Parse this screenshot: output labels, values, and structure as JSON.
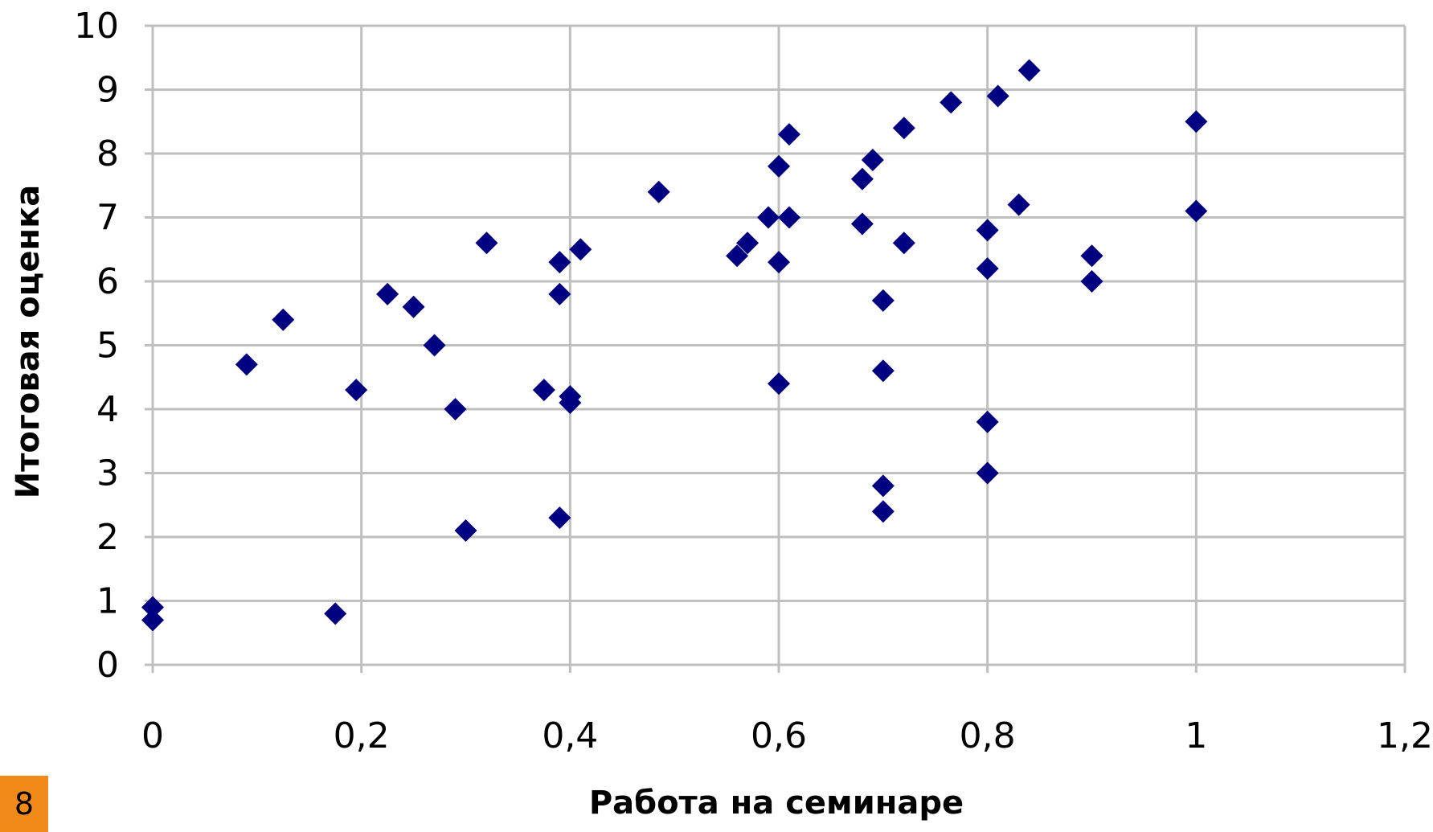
{
  "page_badge": {
    "text": "8",
    "color": "#F28A1A"
  },
  "chart_data": {
    "type": "scatter",
    "title": "",
    "xlabel": "Работа на семинаре",
    "ylabel": "Итоговая оценка",
    "xlim": [
      0,
      1.2
    ],
    "ylim": [
      0,
      10
    ],
    "x_ticks": [
      "0",
      "0,2",
      "0,4",
      "0,6",
      "0,8",
      "1",
      "1,2"
    ],
    "y_ticks": [
      "0",
      "1",
      "2",
      "3",
      "4",
      "5",
      "6",
      "7",
      "8",
      "9",
      "10"
    ],
    "grid": true,
    "legend": "none",
    "marker": "diamond",
    "marker_color": "#000080",
    "grid_color": "#BFBFBF",
    "points": [
      {
        "x": 0,
        "y": 0.9
      },
      {
        "x": 0,
        "y": 0.7
      },
      {
        "x": 0.09,
        "y": 4.7
      },
      {
        "x": 0.125,
        "y": 5.4
      },
      {
        "x": 0.175,
        "y": 0.8
      },
      {
        "x": 0.195,
        "y": 4.3
      },
      {
        "x": 0.225,
        "y": 5.8
      },
      {
        "x": 0.25,
        "y": 5.6
      },
      {
        "x": 0.27,
        "y": 5.0
      },
      {
        "x": 0.29,
        "y": 4.0
      },
      {
        "x": 0.3,
        "y": 2.1
      },
      {
        "x": 0.32,
        "y": 6.6
      },
      {
        "x": 0.375,
        "y": 4.3
      },
      {
        "x": 0.39,
        "y": 6.3
      },
      {
        "x": 0.39,
        "y": 5.8
      },
      {
        "x": 0.39,
        "y": 2.3
      },
      {
        "x": 0.4,
        "y": 4.2
      },
      {
        "x": 0.4,
        "y": 4.1
      },
      {
        "x": 0.41,
        "y": 6.5
      },
      {
        "x": 0.485,
        "y": 7.4
      },
      {
        "x": 0.56,
        "y": 6.4
      },
      {
        "x": 0.57,
        "y": 6.6
      },
      {
        "x": 0.59,
        "y": 7.0
      },
      {
        "x": 0.6,
        "y": 7.8
      },
      {
        "x": 0.6,
        "y": 6.3
      },
      {
        "x": 0.6,
        "y": 4.4
      },
      {
        "x": 0.61,
        "y": 8.3
      },
      {
        "x": 0.61,
        "y": 7.0
      },
      {
        "x": 0.68,
        "y": 7.6
      },
      {
        "x": 0.68,
        "y": 6.9
      },
      {
        "x": 0.69,
        "y": 7.9
      },
      {
        "x": 0.7,
        "y": 5.7
      },
      {
        "x": 0.7,
        "y": 4.6
      },
      {
        "x": 0.7,
        "y": 2.8
      },
      {
        "x": 0.7,
        "y": 2.4
      },
      {
        "x": 0.72,
        "y": 8.4
      },
      {
        "x": 0.72,
        "y": 6.6
      },
      {
        "x": 0.765,
        "y": 8.8
      },
      {
        "x": 0.8,
        "y": 6.8
      },
      {
        "x": 0.8,
        "y": 6.2
      },
      {
        "x": 0.8,
        "y": 3.8
      },
      {
        "x": 0.8,
        "y": 3.0
      },
      {
        "x": 0.81,
        "y": 8.9
      },
      {
        "x": 0.83,
        "y": 7.2
      },
      {
        "x": 0.84,
        "y": 9.3
      },
      {
        "x": 0.9,
        "y": 6.4
      },
      {
        "x": 0.9,
        "y": 6.0
      },
      {
        "x": 1.0,
        "y": 8.5
      },
      {
        "x": 1.0,
        "y": 7.1
      }
    ]
  }
}
